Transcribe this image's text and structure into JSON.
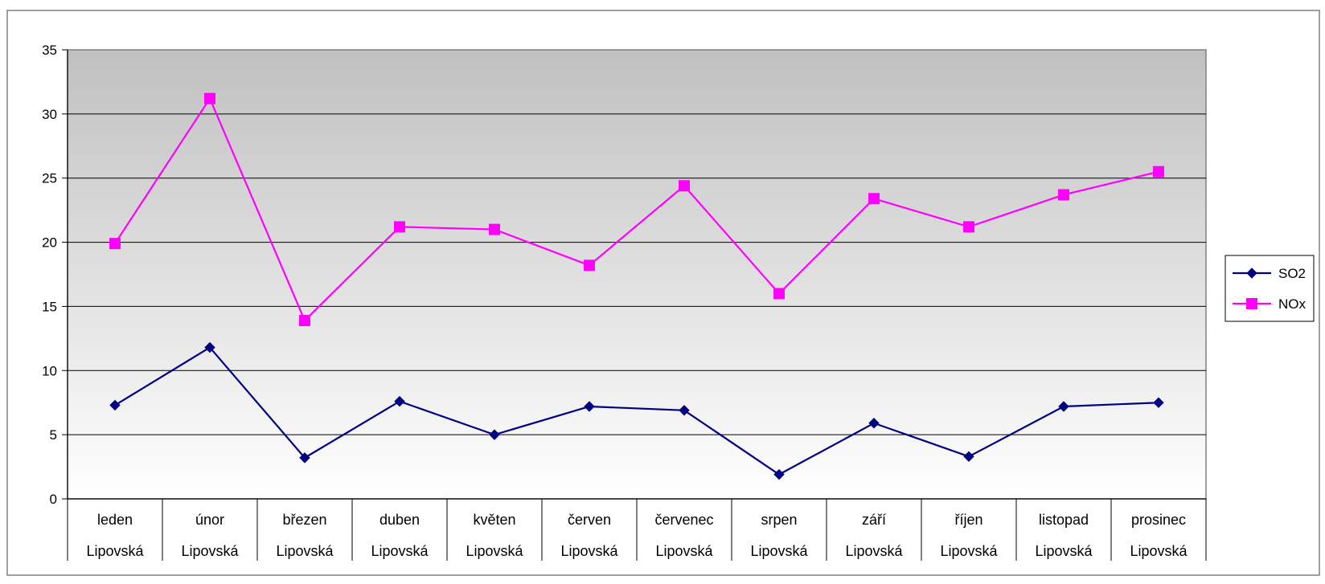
{
  "chart_data": {
    "type": "line",
    "title": "",
    "xlabel": "",
    "ylabel": "",
    "ylim": [
      0,
      35
    ],
    "yticks": [
      0,
      5,
      10,
      15,
      20,
      25,
      30,
      35
    ],
    "grid": true,
    "legend_position": "right",
    "categories": [
      "leden",
      "únor",
      "březen",
      "duben",
      "květen",
      "červen",
      "červenec",
      "srpen",
      "září",
      "říjen",
      "listopad",
      "prosinec"
    ],
    "category_group": "Lipovská",
    "series": [
      {
        "name": "SO2",
        "color": "#000080",
        "marker": "diamond",
        "values": [
          7.3,
          11.8,
          3.2,
          7.6,
          5.0,
          7.2,
          6.9,
          1.9,
          5.9,
          3.3,
          7.2,
          7.5
        ]
      },
      {
        "name": "NOx",
        "color": "#FF00FF",
        "marker": "square",
        "values": [
          19.9,
          31.2,
          13.9,
          21.2,
          21.0,
          18.2,
          24.4,
          16.0,
          23.4,
          21.2,
          23.7,
          25.5
        ]
      }
    ]
  }
}
